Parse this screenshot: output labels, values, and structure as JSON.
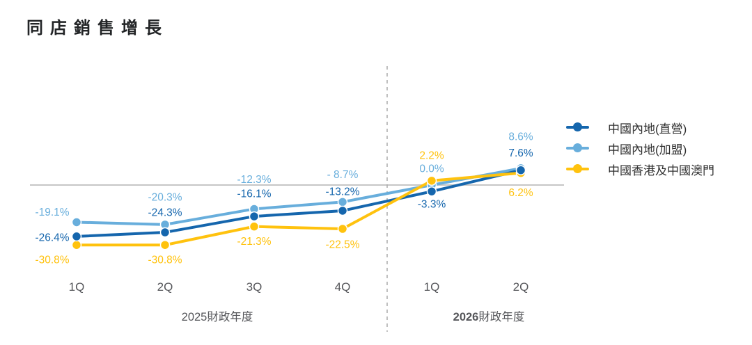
{
  "page": {
    "background": "#FFFFFF"
  },
  "chart_data": {
    "type": "line",
    "title": "同店銷售增長",
    "x_categories": [
      "1Q",
      "2Q",
      "3Q",
      "4Q",
      "1Q",
      "2Q"
    ],
    "x_groups": [
      {
        "year": "2025",
        "suffix": "財政年度",
        "bold_year": false
      },
      {
        "year": "2026",
        "suffix": "財政年度",
        "bold_year": true
      }
    ],
    "divider_after_category_index": 3,
    "zero_line": true,
    "ylim": [
      -35,
      12
    ],
    "legend_position": "right",
    "series": [
      {
        "name": "中國內地(直營)",
        "color": "#1566AD",
        "values": [
          -26.4,
          -24.3,
          -16.1,
          -13.2,
          -3.3,
          7.6
        ],
        "labels": [
          "-26.4%",
          "-24.3%",
          "-16.1%",
          "-13.2%",
          "-3.3%",
          "7.6%"
        ]
      },
      {
        "name": "中國內地(加盟)",
        "color": "#68AEDC",
        "values": [
          -19.1,
          -20.3,
          -12.3,
          -8.7,
          0.0,
          8.6
        ],
        "labels": [
          "-19.1%",
          "-20.3%",
          "-12.3%",
          "- 8.7%",
          "0.0%",
          "8.6%"
        ]
      },
      {
        "name": "中國香港及中國澳門",
        "color": "#FFC20E",
        "values": [
          -30.8,
          -30.8,
          -21.3,
          -22.5,
          2.2,
          6.2
        ],
        "labels": [
          "-30.8%",
          "-30.8%",
          "-21.3%",
          "-22.5%",
          "2.2%",
          "6.2%"
        ]
      }
    ],
    "axis_text_color": "#55565A",
    "zero_line_color": "#C6C6C6",
    "divider_color": "#ACACAC"
  }
}
